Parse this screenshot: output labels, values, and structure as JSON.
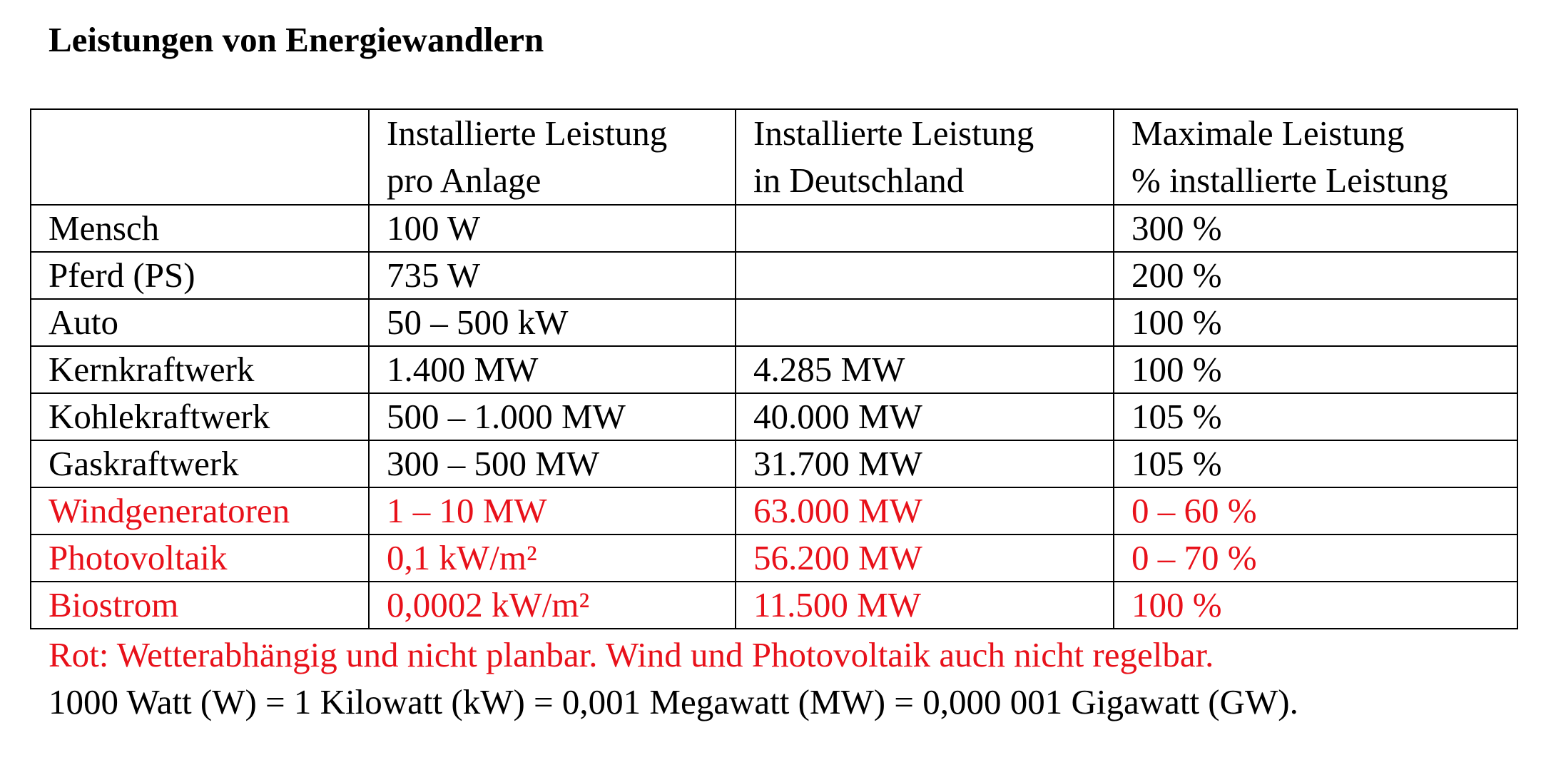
{
  "title": "Leistungen von Energiewandlern",
  "table": {
    "headers": [
      [
        "",
        ""
      ],
      [
        "Installierte Leistung",
        "pro Anlage"
      ],
      [
        "Installierte Leistung",
        "in Deutschland"
      ],
      [
        "Maximale Leistung",
        "% installierte Leistung"
      ]
    ],
    "rows": [
      {
        "cells": [
          "Mensch",
          "100 W",
          "",
          "300 %"
        ],
        "color": "#000000"
      },
      {
        "cells": [
          "Pferd (PS)",
          "735 W",
          "",
          "200 %"
        ],
        "color": "#000000"
      },
      {
        "cells": [
          "Auto",
          "50 – 500 kW",
          "",
          "100 %"
        ],
        "color": "#000000"
      },
      {
        "cells": [
          "Kernkraftwerk",
          "1.400 MW",
          "4.285 MW",
          "100 %"
        ],
        "color": "#000000"
      },
      {
        "cells": [
          "Kohlekraftwerk",
          "500 – 1.000 MW",
          "40.000 MW",
          "105 %"
        ],
        "color": "#000000"
      },
      {
        "cells": [
          "Gaskraftwerk",
          "300 – 500 MW",
          "31.700 MW",
          "105 %"
        ],
        "color": "#000000"
      },
      {
        "cells": [
          "Windgeneratoren",
          "1 – 10 MW",
          "63.000 MW",
          "0 – 60 %"
        ],
        "color": "#e8111a"
      },
      {
        "cells": [
          "Photovoltaik",
          "0,1 kW/m²",
          "56.200 MW",
          "0 – 70 %"
        ],
        "color": "#e8111a"
      },
      {
        "cells": [
          "Biostrom",
          "0,0002 kW/m²",
          "11.500 MW",
          "100 %"
        ],
        "color": "#e8111a"
      }
    ]
  },
  "notes": {
    "red_note": "Rot: Wetterabhängig und nicht planbar. Wind und Photovoltaik auch nicht regelbar.",
    "unit_note": "1000 Watt (W) = 1 Kilowatt (kW) = 0,001 Megawatt (MW) = 0,000 001 Gigawatt (GW)."
  },
  "colors": {
    "text": "#000000",
    "highlight_red": "#e8111a",
    "border": "#000000"
  }
}
